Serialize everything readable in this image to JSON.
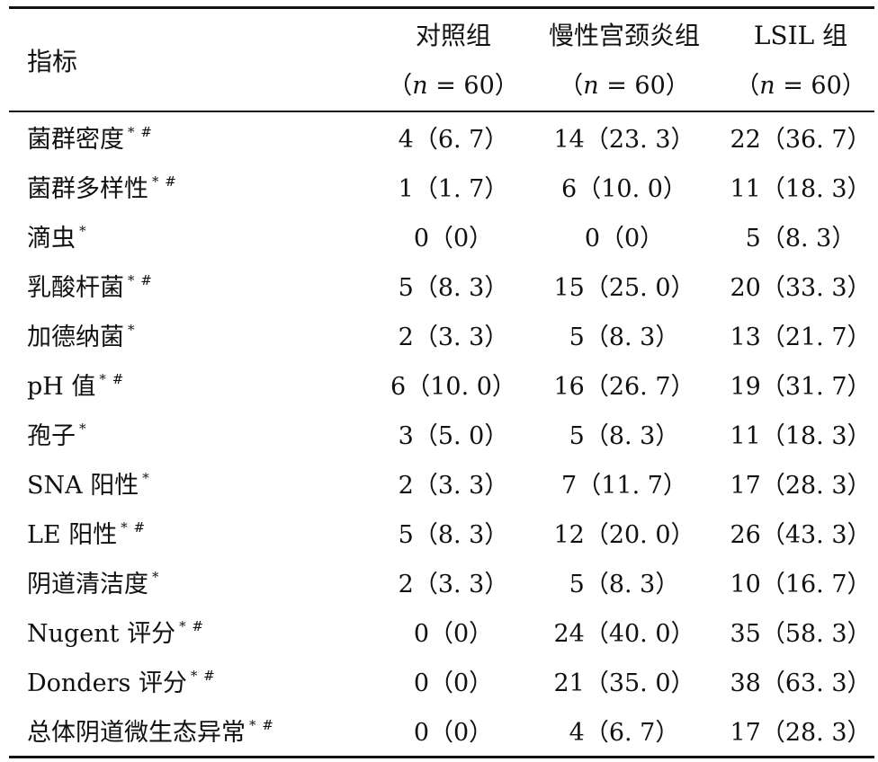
{
  "table": {
    "header": {
      "indicator": "指标",
      "groups": [
        {
          "name": "对照组",
          "n_prefix": "（",
          "n_var": "n",
          "n_rest": " = 60）"
        },
        {
          "name": "慢性宫颈炎组",
          "n_prefix": "（",
          "n_var": "n",
          "n_rest": " = 60）"
        },
        {
          "name": "LSIL 组",
          "n_prefix": "（",
          "n_var": "n",
          "n_rest": " = 60）"
        }
      ]
    },
    "rows": [
      {
        "indicator": "菌群密度",
        "mark": "* #",
        "control": "4（6. 7）",
        "cervicitis": "14（23. 3）",
        "lsil": "22（36. 7）"
      },
      {
        "indicator": "菌群多样性",
        "mark": "* #",
        "control": "1（1. 7）",
        "cervicitis": "6（10. 0）",
        "lsil": "11（18. 3）"
      },
      {
        "indicator": "滴虫",
        "mark": "*",
        "control": "0（0）",
        "cervicitis": "0（0）",
        "lsil": "5（8. 3）"
      },
      {
        "indicator": "乳酸杆菌",
        "mark": "* #",
        "control": "5（8. 3）",
        "cervicitis": "15（25. 0）",
        "lsil": "20（33. 3）"
      },
      {
        "indicator": "加德纳菌",
        "mark": "*",
        "control": "2（3. 3）",
        "cervicitis": "5（8. 3）",
        "lsil": "13（21. 7）"
      },
      {
        "indicator": "pH 值",
        "mark": "* #",
        "control": "6（10. 0）",
        "cervicitis": "16（26. 7）",
        "lsil": "19（31. 7）"
      },
      {
        "indicator": "孢子",
        "mark": "*",
        "control": "3（5. 0）",
        "cervicitis": "5（8. 3）",
        "lsil": "11（18. 3）"
      },
      {
        "indicator": "SNA 阳性",
        "mark": "*",
        "control": "2（3. 3）",
        "cervicitis": "7（11. 7）",
        "lsil": "17（28. 3）"
      },
      {
        "indicator": "LE 阳性",
        "mark": "* #",
        "control": "5（8. 3）",
        "cervicitis": "12（20. 0）",
        "lsil": "26（43. 3）"
      },
      {
        "indicator": "阴道清洁度",
        "mark": "*",
        "control": "2（3. 3）",
        "cervicitis": "5（8. 3）",
        "lsil": "10（16. 7）"
      },
      {
        "indicator": "Nugent 评分",
        "mark": "* #",
        "control": "0（0）",
        "cervicitis": "24（40. 0）",
        "lsil": "35（58. 3）"
      },
      {
        "indicator": "Donders 评分",
        "mark": "* #",
        "control": "0（0）",
        "cervicitis": "21（35. 0）",
        "lsil": "38（63. 3）"
      },
      {
        "indicator": "总体阴道微生态异常",
        "mark": "* #",
        "control": "0（0）",
        "cervicitis": "4（6. 7）",
        "lsil": "17（28. 3）"
      }
    ]
  }
}
